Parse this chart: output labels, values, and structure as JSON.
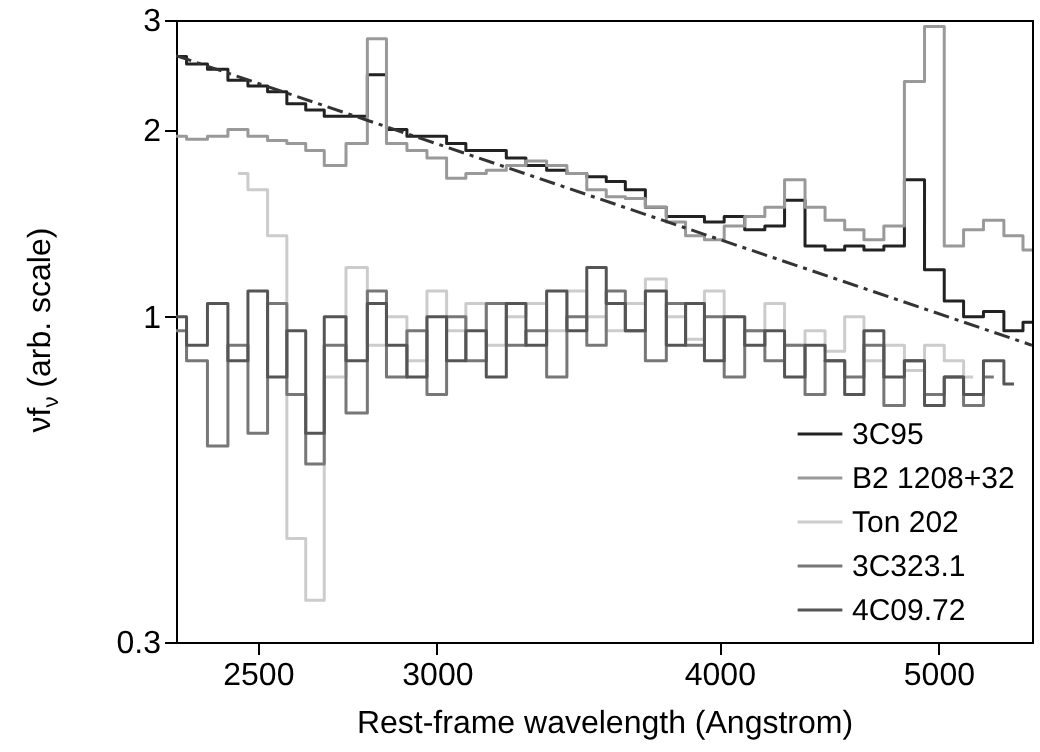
{
  "chart_data": {
    "type": "step",
    "xlabel": "Rest-frame wavelength (Angstrom)",
    "ylabel": "νf$_{ν}$ (arb. scale)",
    "x": [
      2300,
      2350,
      2400,
      2450,
      2500,
      2550,
      2600,
      2650,
      2700,
      2770,
      2820,
      2880,
      2940,
      3000,
      3060,
      3120,
      3190,
      3250,
      3320,
      3390,
      3460,
      3530,
      3600,
      3670,
      3750,
      3830,
      3900,
      3980,
      4060,
      4150,
      4230,
      4320,
      4410,
      4500,
      4590,
      4680,
      4780,
      4880,
      4980,
      5080,
      5180,
      5290,
      5400,
      5500
    ],
    "series": [
      {
        "name": "3C95",
        "color": "#222222",
        "values": [
          2.62,
          2.55,
          2.5,
          2.4,
          2.35,
          2.3,
          2.2,
          2.15,
          2.1,
          2.1,
          2.45,
          2.0,
          1.95,
          1.95,
          1.9,
          1.85,
          1.85,
          1.8,
          1.75,
          1.72,
          1.7,
          1.68,
          1.65,
          1.6,
          1.5,
          1.45,
          1.45,
          1.42,
          1.45,
          1.38,
          1.4,
          1.54,
          1.3,
          1.28,
          1.3,
          1.28,
          1.3,
          1.66,
          1.19,
          1.06,
          1.0,
          1.02,
          0.95,
          0.98
        ]
      },
      {
        "name": "B2 1208+32",
        "color": "#999999",
        "values": [
          1.95,
          1.93,
          1.95,
          2.0,
          1.95,
          1.92,
          1.9,
          1.85,
          1.75,
          1.9,
          2.8,
          1.9,
          1.85,
          1.8,
          1.67,
          1.7,
          1.72,
          1.75,
          1.78,
          1.75,
          1.7,
          1.6,
          1.56,
          1.55,
          1.5,
          1.42,
          1.35,
          1.33,
          1.4,
          1.45,
          1.5,
          1.66,
          1.5,
          1.43,
          1.38,
          1.33,
          1.4,
          2.39,
          2.93,
          1.3,
          1.38,
          1.43,
          1.35,
          1.28
        ]
      },
      {
        "name": "Ton 202",
        "color": "#cccccc",
        "values": [
          null,
          null,
          null,
          1.7,
          1.6,
          1.35,
          0.44,
          0.35,
          0.8,
          1.2,
          0.9,
          1.0,
          0.85,
          1.1,
          0.95,
          1.05,
          0.9,
          1.0,
          1.05,
          0.95,
          1.1,
          1.0,
          0.95,
          1.05,
          1.15,
          1.0,
          0.92,
          1.1,
          1.0,
          0.95,
          1.05,
          0.9,
          0.95,
          0.88,
          1.0,
          0.85,
          0.9,
          0.82,
          0.9,
          0.85,
          0.8,
          null,
          null,
          null
        ]
      },
      {
        "name": "3C323.1",
        "color": "#777777",
        "values": [
          0.95,
          0.85,
          0.62,
          0.9,
          0.65,
          1.05,
          0.75,
          0.58,
          0.9,
          0.7,
          1.1,
          0.8,
          0.95,
          0.75,
          1.0,
          0.85,
          1.05,
          0.9,
          0.95,
          0.8,
          1.0,
          0.9,
          1.1,
          0.95,
          0.85,
          1.05,
          0.9,
          1.0,
          0.8,
          0.95,
          0.85,
          0.9,
          0.75,
          0.85,
          0.8,
          0.9,
          0.72,
          0.85,
          0.75,
          0.8,
          0.72,
          0.8,
          null,
          null
        ]
      },
      {
        "name": "4C09.72",
        "color": "#555555",
        "values": [
          1.0,
          0.9,
          1.05,
          0.85,
          1.1,
          0.8,
          0.95,
          0.65,
          1.0,
          0.85,
          1.05,
          0.9,
          0.8,
          1.0,
          0.85,
          0.95,
          0.8,
          1.05,
          0.9,
          1.1,
          0.95,
          1.2,
          1.05,
          0.95,
          1.1,
          0.9,
          1.05,
          0.85,
          1.0,
          0.9,
          0.95,
          0.8,
          0.9,
          0.85,
          0.75,
          0.95,
          0.8,
          0.85,
          0.72,
          0.8,
          0.75,
          0.85,
          0.78,
          null
        ]
      },
      {
        "type": "line",
        "line_style": "dashed",
        "color": "#333333",
        "x": [
          2300,
          5500
        ],
        "values": [
          2.63,
          0.9
        ]
      }
    ],
    "xlim": [
      2300,
      5500
    ],
    "xticks": [
      2500,
      3000,
      4000,
      5000
    ],
    "log": "xy",
    "ylim": [
      0.3,
      3
    ],
    "yticks": [
      0.3,
      1,
      2,
      3
    ],
    "legend": "bottom right"
  }
}
